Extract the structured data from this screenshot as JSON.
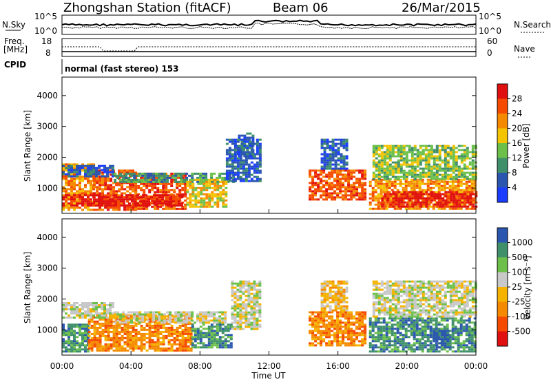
{
  "header": {
    "station_title": "Zhongshan Station (fitACF)",
    "beam": "Beam 06",
    "date": "26/Mar/2015"
  },
  "top_panel": {
    "left_label": "N.Sky",
    "left_ticks": [
      "10^5",
      "10^0"
    ],
    "right_label": "N.Search",
    "right_ticks": [
      "10^5",
      "10^0"
    ]
  },
  "freq_panel": {
    "left_label_1": "Freq.",
    "left_label_2": "[MHz]",
    "left_ticks": [
      "18",
      "8"
    ],
    "right_label": "Nave",
    "right_ticks": [
      "60",
      "0"
    ]
  },
  "cpid": {
    "label": "CPID",
    "mode": "normal (fast stereo) 153"
  },
  "colors": {
    "power": [
      "#1a3cff",
      "#2a56b0",
      "#3e8f6a",
      "#6cc04a",
      "#f5c400",
      "#f58a00",
      "#f54a00",
      "#e01010"
    ],
    "velocity": [
      "#e01010",
      "#f54a00",
      "#f58a00",
      "#f5b300",
      "#c8c8c8",
      "#6cc04a",
      "#3e8f6a",
      "#2a56b0"
    ]
  },
  "chart_data": [
    {
      "type": "heatmap",
      "name": "power-panel",
      "ylabel": "Slant Range [km]",
      "y_ticks": [
        1000,
        2000,
        3000,
        4000
      ],
      "ylim": [
        180,
        4600
      ],
      "xlim": [
        0,
        24
      ],
      "colorbar": {
        "label": "Power [dB]",
        "ticks": [
          4,
          8,
          12,
          16,
          20,
          24,
          28
        ]
      },
      "regions": [
        {
          "t0": 0.0,
          "t1": 1.8,
          "r0": 300,
          "r1": 1800,
          "c": 5
        },
        {
          "t0": 1.8,
          "t1": 4.2,
          "r0": 300,
          "r1": 1600,
          "c": 6
        },
        {
          "t0": 4.2,
          "t1": 7.2,
          "r0": 300,
          "r1": 1500,
          "c": 6
        },
        {
          "t0": 0.0,
          "t1": 7.0,
          "r0": 400,
          "r1": 800,
          "c": 7
        },
        {
          "t0": 0.0,
          "t1": 3.0,
          "r0": 1350,
          "r1": 1750,
          "c": 1
        },
        {
          "t0": 3.0,
          "t1": 10.0,
          "r0": 1200,
          "r1": 1500,
          "c": 2
        },
        {
          "t0": 7.2,
          "t1": 9.5,
          "r0": 400,
          "r1": 1300,
          "c": 4
        },
        {
          "t0": 9.5,
          "t1": 11.5,
          "r0": 1200,
          "r1": 2600,
          "c": 1
        },
        {
          "t0": 10.2,
          "t1": 11.0,
          "r0": 2000,
          "r1": 2800,
          "c": 1
        },
        {
          "t0": 14.3,
          "t1": 17.5,
          "r0": 600,
          "r1": 1600,
          "c": 6
        },
        {
          "t0": 15.0,
          "t1": 16.5,
          "r0": 1600,
          "r1": 2600,
          "c": 1
        },
        {
          "t0": 17.8,
          "t1": 24.0,
          "r0": 300,
          "r1": 1300,
          "c": 5
        },
        {
          "t0": 18.5,
          "t1": 24.0,
          "r0": 400,
          "r1": 900,
          "c": 7
        },
        {
          "t0": 18.0,
          "t1": 24.0,
          "r0": 1300,
          "r1": 2400,
          "c": 3
        }
      ]
    },
    {
      "type": "heatmap",
      "name": "velocity-panel",
      "ylabel": "Slant Range [km]",
      "y_ticks": [
        1000,
        2000,
        3000,
        4000
      ],
      "ylim": [
        180,
        4600
      ],
      "xlim": [
        0,
        24
      ],
      "xlabel": "Time UT",
      "x_ticks": [
        "00:00",
        "04:00",
        "08:00",
        "12:00",
        "16:00",
        "20:00",
        "00:00"
      ],
      "colorbar": {
        "label": "Velocity [m s⁻¹]",
        "ticks": [
          "-1000",
          "-500",
          "-100",
          "-25",
          "25",
          "100",
          "500",
          "1000"
        ]
      },
      "regions": [
        {
          "t0": 0.0,
          "t1": 1.5,
          "r0": 300,
          "r1": 1200,
          "c": 6
        },
        {
          "t0": 1.5,
          "t1": 7.5,
          "r0": 300,
          "r1": 1500,
          "c": 2
        },
        {
          "t0": 0.0,
          "t1": 3.0,
          "r0": 1400,
          "r1": 1900,
          "c": 4
        },
        {
          "t0": 3.0,
          "t1": 9.5,
          "r0": 1200,
          "r1": 1600,
          "c": 4
        },
        {
          "t0": 7.5,
          "t1": 9.8,
          "r0": 400,
          "r1": 1200,
          "c": 6
        },
        {
          "t0": 9.8,
          "t1": 11.5,
          "r0": 1000,
          "r1": 2600,
          "c": 4
        },
        {
          "t0": 14.3,
          "t1": 17.5,
          "r0": 500,
          "r1": 1600,
          "c": 2
        },
        {
          "t0": 15.0,
          "t1": 16.5,
          "r0": 1600,
          "r1": 2600,
          "c": 3
        },
        {
          "t0": 17.8,
          "t1": 24.0,
          "r0": 300,
          "r1": 1400,
          "c": 6
        },
        {
          "t0": 18.0,
          "t1": 24.0,
          "r0": 1400,
          "r1": 2600,
          "c": 4
        },
        {
          "t0": 21.5,
          "t1": 22.3,
          "r0": 400,
          "r1": 1000,
          "c": 7
        }
      ]
    }
  ],
  "axis": {
    "x_ticks": [
      "00:00",
      "04:00",
      "08:00",
      "12:00",
      "16:00",
      "20:00",
      "00:00"
    ],
    "x_label": "Time UT",
    "y_label": "Slant Range [km]",
    "y_ticks": [
      "1000",
      "2000",
      "3000",
      "4000"
    ],
    "power_label": "Power [dB]",
    "power_ticks": [
      "4",
      "8",
      "12",
      "16",
      "20",
      "24",
      "28"
    ],
    "velocity_label": "Velocity [m s⁻¹]",
    "velocity_ticks": [
      "1000",
      "500",
      "100",
      "25",
      "-25",
      "-100",
      "-500",
      "-1000"
    ]
  }
}
